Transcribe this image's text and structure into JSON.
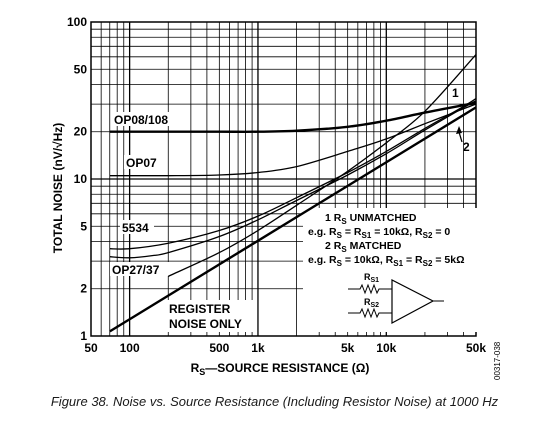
{
  "caption": "Figure 38. Noise vs. Source Resistance (Including Resistor Noise) at 1000 Hz",
  "figure_code": "00317-038",
  "chart_data": {
    "type": "line",
    "xscale": "log",
    "yscale": "log",
    "xlim": [
      50,
      50000
    ],
    "ylim": [
      1,
      100
    ],
    "grid": true,
    "xlabel_prefix": "R",
    "xlabel_sub": "S",
    "xlabel_rest": "—SOURCE RESISTANCE (Ω)",
    "ylabel": "TOTAL NOISE (nV/√Hz)",
    "x_ticks": [
      {
        "value": 50,
        "label": "50"
      },
      {
        "value": 100,
        "label": "100"
      },
      {
        "value": 500,
        "label": "500"
      },
      {
        "value": 1000,
        "label": "1k"
      },
      {
        "value": 5000,
        "label": "5k"
      },
      {
        "value": 10000,
        "label": "10k"
      },
      {
        "value": 50000,
        "label": "50k"
      }
    ],
    "y_ticks": [
      {
        "value": 1,
        "label": "1"
      },
      {
        "value": 2,
        "label": "2"
      },
      {
        "value": 5,
        "label": "5"
      },
      {
        "value": 10,
        "label": "10"
      },
      {
        "value": 20,
        "label": "20"
      },
      {
        "value": 50,
        "label": "50"
      },
      {
        "value": 100,
        "label": "100"
      }
    ],
    "series": [
      {
        "name": "OP08/108",
        "weight": "heavy",
        "x": [
          70,
          100,
          200,
          500,
          1000,
          2000,
          5000,
          10000,
          20000,
          40000,
          50000
        ],
        "y": [
          20,
          20,
          20,
          20,
          20,
          20.3,
          21.5,
          23.5,
          26.5,
          29.5,
          30.5
        ]
      },
      {
        "name": "OP07",
        "weight": "light",
        "x": [
          70,
          100,
          200,
          500,
          1000,
          2000,
          5000,
          10000,
          20000,
          40000,
          50000
        ],
        "y": [
          10.5,
          10.5,
          10.5,
          10.6,
          11.0,
          12.0,
          15.0,
          18.0,
          22.5,
          28.0,
          30.0
        ]
      },
      {
        "name": "5534",
        "weight": "light",
        "x": [
          70,
          100,
          200,
          500,
          1000,
          2000,
          5000,
          10000,
          20000,
          40000,
          50000
        ],
        "y": [
          3.6,
          3.6,
          3.9,
          4.7,
          5.8,
          7.6,
          11.0,
          15.0,
          21.0,
          29.0,
          32.5
        ]
      },
      {
        "name": "OP27/37",
        "weight": "light",
        "x": [
          70,
          100,
          150,
          200,
          500,
          1000,
          2000,
          5000,
          10000,
          20000,
          40000,
          50000
        ],
        "y": [
          3.2,
          3.15,
          3.25,
          3.4,
          4.3,
          5.5,
          7.3,
          10.6,
          14.5,
          20.5,
          28.5,
          31.5
        ]
      },
      {
        "name": "1 RS UNMATCHED",
        "weight": "light",
        "x": [
          200,
          500,
          1000,
          2000,
          5000,
          10000,
          20000,
          50000
        ],
        "y": [
          2.4,
          3.4,
          4.7,
          6.8,
          11.2,
          17.0,
          27.0,
          62.0
        ]
      },
      {
        "name": "REGISTER NOISE ONLY",
        "weight": "heavy",
        "x": [
          70,
          50000
        ],
        "y": [
          1.07,
          28.6
        ]
      }
    ],
    "labels": {
      "op08": "OP08/108",
      "op07": "OP07",
      "c5534": "5534",
      "op27": "OP27/37",
      "reg_line1": "REGISTER",
      "reg_line2": "NOISE ONLY",
      "one": "1",
      "two": "2"
    },
    "legend_notes": {
      "l1_num": "1",
      "l1_R": "R",
      "l1_sub": "S",
      "l1_text": " UNMATCHED",
      "l2_a": "e.g. R",
      "l2_sub1": "S",
      "l2_b": " = R",
      "l2_sub2": "S1",
      "l2_c": " = 10kΩ, R",
      "l2_sub3": "S2",
      "l2_d": " = 0",
      "l3_num": "2",
      "l3_R": "R",
      "l3_sub": "S",
      "l3_text": " MATCHED",
      "l4_a": "e.g. R",
      "l4_sub1": "S",
      "l4_b": " = 10kΩ, R",
      "l4_sub2": "S1",
      "l4_c": " = R",
      "l4_sub3": "S2",
      "l4_d": " = 5kΩ",
      "rs1_R": "R",
      "rs1_sub": "S1",
      "rs2_R": "R",
      "rs2_sub": "S2"
    }
  }
}
